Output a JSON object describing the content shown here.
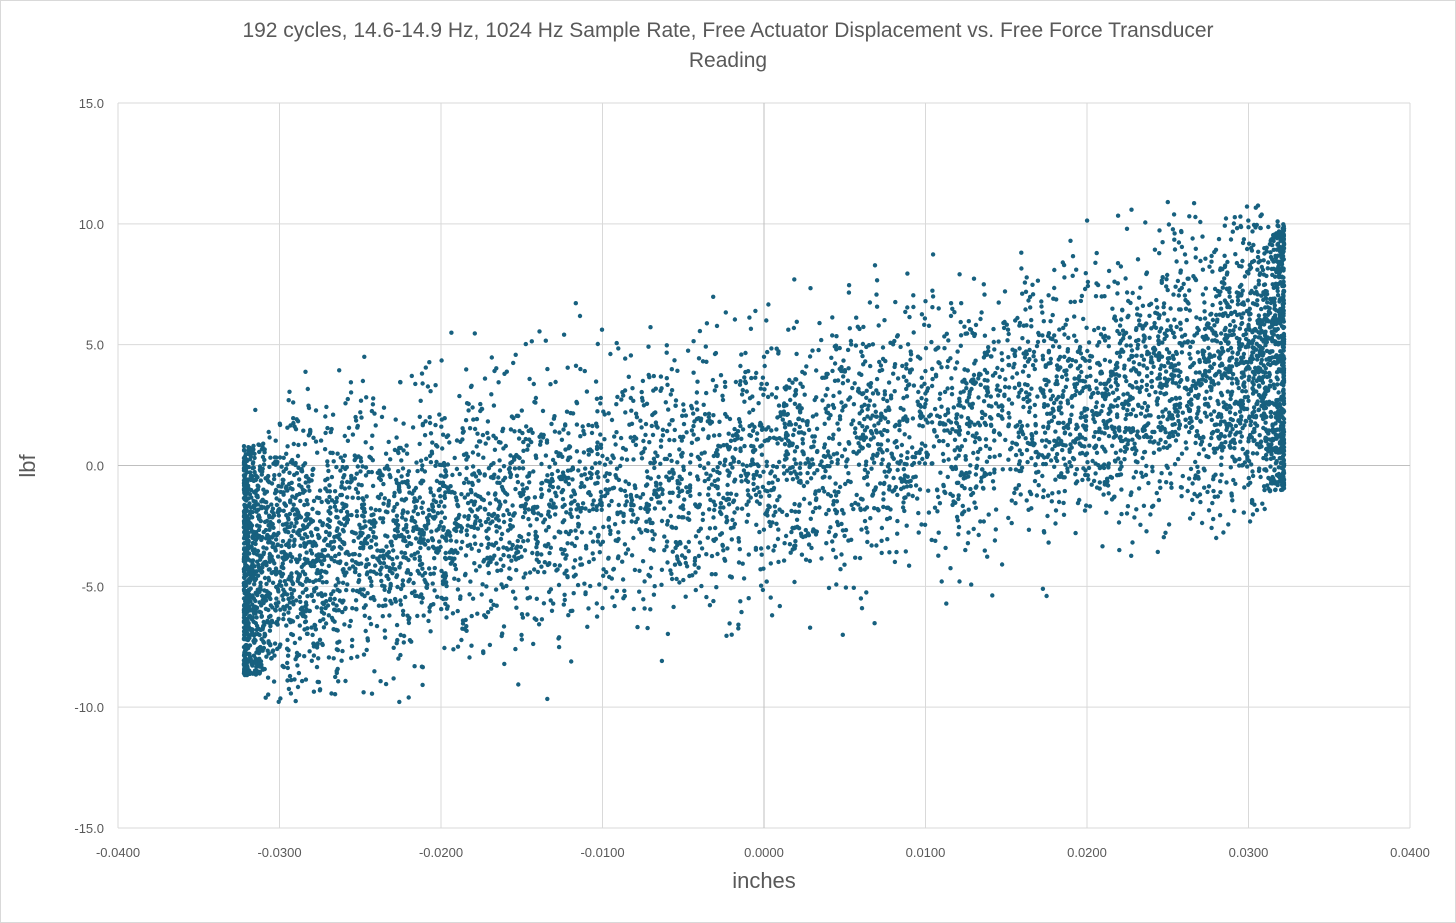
{
  "chart_data": {
    "type": "scatter",
    "title_line1": "192 cycles, 14.6-14.9 Hz, 1024 Hz Sample Rate, Free Actuator Displacement vs. Free Force Transducer",
    "title_line2": "Reading",
    "xlabel": "inches",
    "ylabel": "lbf",
    "xlim": [
      -0.04,
      0.04
    ],
    "ylim": [
      -15,
      15
    ],
    "grid": true,
    "marker_color": "#17607f",
    "x_ticks": [
      "-0.0400",
      "-0.0300",
      "-0.0200",
      "-0.0100",
      "0.0000",
      "0.0100",
      "0.0200",
      "0.0300",
      "0.0400"
    ],
    "y_ticks": [
      "15.0",
      "10.0",
      "5.0",
      "0.0",
      "-5.0",
      "-10.0",
      "-15.0"
    ],
    "series": [
      {
        "points_sample": [
          [
            -0.0322,
            -8.2
          ],
          [
            -0.0322,
            0.8
          ],
          [
            -0.032,
            -4.5
          ],
          [
            -0.0318,
            -6.8
          ],
          [
            -0.0315,
            2.3
          ],
          [
            -0.031,
            -1.0
          ],
          [
            -0.03,
            -7.5
          ],
          [
            -0.029,
            0.1
          ],
          [
            -0.0275,
            -9.3
          ],
          [
            -0.026,
            -3.2
          ],
          [
            -0.025,
            2.2
          ],
          [
            -0.0235,
            -5.0
          ],
          [
            -0.022,
            -9.6
          ],
          [
            -0.02,
            -1.5
          ],
          [
            -0.018,
            1.9
          ],
          [
            -0.015,
            -7.2
          ],
          [
            -0.012,
            -2.0
          ],
          [
            -0.01,
            -5.9
          ],
          [
            -0.0075,
            3.5
          ],
          [
            -0.005,
            -1.8
          ],
          [
            -0.002,
            -7.0
          ],
          [
            0.0,
            4.5
          ],
          [
            0.0005,
            -6.2
          ],
          [
            0.003,
            1.2
          ],
          [
            0.006,
            -5.5
          ],
          [
            0.008,
            3.8
          ],
          [
            0.01,
            6.8
          ],
          [
            0.011,
            -4.8
          ],
          [
            0.014,
            2.0
          ],
          [
            0.0175,
            -5.4
          ],
          [
            0.0185,
            8.4
          ],
          [
            0.02,
            0.5
          ],
          [
            0.022,
            -3.5
          ],
          [
            0.025,
            10.9
          ],
          [
            0.027,
            -1.2
          ],
          [
            0.028,
            -3.0
          ],
          [
            0.0295,
            10.3
          ],
          [
            0.03,
            1.0
          ],
          [
            0.031,
            -1.8
          ],
          [
            0.0318,
            10.1
          ],
          [
            0.032,
            -0.6
          ],
          [
            0.0322,
            4.0
          ]
        ],
        "trend": {
          "center_at_xmin": -4.0,
          "center_at_xmax": 4.5,
          "spread": 5.0
        },
        "point_count": 7000
      }
    ]
  }
}
